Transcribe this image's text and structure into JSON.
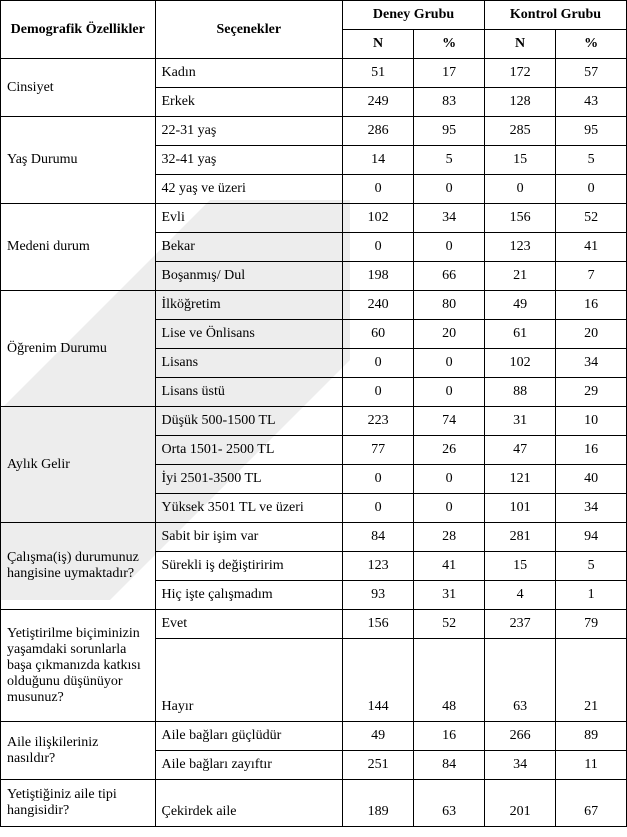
{
  "headers": {
    "demografik": "Demografik Özellikler",
    "secenekler": "Seçenekler",
    "deney": "Deney Grubu",
    "kontrol": "Kontrol Grubu",
    "n": "N",
    "pct": "%"
  },
  "sections": [
    {
      "label": "Cinsiyet",
      "rows": [
        {
          "option": "Kadın",
          "dn": "51",
          "dp": "17",
          "kn": "172",
          "kp": "57"
        },
        {
          "option": "Erkek",
          "dn": "249",
          "dp": "83",
          "kn": "128",
          "kp": "43"
        }
      ]
    },
    {
      "label": "Yaş Durumu",
      "rows": [
        {
          "option": "22-31 yaş",
          "dn": "286",
          "dp": "95",
          "kn": "285",
          "kp": "95"
        },
        {
          "option": "32-41 yaş",
          "dn": "14",
          "dp": "5",
          "kn": "15",
          "kp": "5"
        },
        {
          "option": "42 yaş ve üzeri",
          "dn": "0",
          "dp": "0",
          "kn": "0",
          "kp": "0"
        }
      ]
    },
    {
      "label": "Medeni durum",
      "rows": [
        {
          "option": "Evli",
          "dn": "102",
          "dp": "34",
          "kn": "156",
          "kp": "52"
        },
        {
          "option": "Bekar",
          "dn": "0",
          "dp": "0",
          "kn": "123",
          "kp": "41"
        },
        {
          "option": "Boşanmış/ Dul",
          "dn": "198",
          "dp": "66",
          "kn": "21",
          "kp": "7"
        }
      ]
    },
    {
      "label": "Öğrenim Durumu",
      "rows": [
        {
          "option": "İlköğretim",
          "dn": "240",
          "dp": "80",
          "kn": "49",
          "kp": "16"
        },
        {
          "option": "Lise ve Önlisans",
          "dn": "60",
          "dp": "20",
          "kn": "61",
          "kp": "20"
        },
        {
          "option": "Lisans",
          "dn": "0",
          "dp": "0",
          "kn": "102",
          "kp": "34"
        },
        {
          "option": "Lisans üstü",
          "dn": "0",
          "dp": "0",
          "kn": "88",
          "kp": "29"
        }
      ]
    },
    {
      "label": "Aylık Gelir",
      "rows": [
        {
          "option": "Düşük 500-1500 TL",
          "dn": "223",
          "dp": "74",
          "kn": "31",
          "kp": "10"
        },
        {
          "option": "Orta 1501- 2500 TL",
          "dn": "77",
          "dp": "26",
          "kn": "47",
          "kp": "16"
        },
        {
          "option": "İyi 2501-3500 TL",
          "dn": "0",
          "dp": "0",
          "kn": "121",
          "kp": "40"
        },
        {
          "option": "Yüksek 3501 TL ve üzeri",
          "dn": "0",
          "dp": "0",
          "kn": "101",
          "kp": "34"
        }
      ]
    },
    {
      "label": "Çalışma(iş) durumunuz hangisine uymaktadır?",
      "rows": [
        {
          "option": "Sabit bir işim var",
          "dn": "84",
          "dp": "28",
          "kn": "281",
          "kp": "94"
        },
        {
          "option": "Sürekli iş değiştiririm",
          "dn": "123",
          "dp": "41",
          "kn": "15",
          "kp": "5"
        },
        {
          "option": "Hiç işte çalışmadım",
          "dn": "93",
          "dp": "31",
          "kn": "4",
          "kp": "1"
        }
      ]
    },
    {
      "label": "Yetiştirilme biçiminizin yaşamdaki sorunlarla başa çıkmanızda katkısı olduğunu düşünüyor musunuz?",
      "rows": [
        {
          "option": "Evet",
          "dn": "156",
          "dp": "52",
          "kn": "237",
          "kp": "79"
        },
        {
          "option": "Hayır",
          "dn": "144",
          "dp": "48",
          "kn": "63",
          "kp": "21",
          "tall": true
        }
      ]
    },
    {
      "label": "Aile ilişkileriniz nasıldır?",
      "rows": [
        {
          "option": "Aile bağları güçlüdür",
          "dn": "49",
          "dp": "16",
          "kn": "266",
          "kp": "89"
        },
        {
          "option": "Aile bağları zayıftır",
          "dn": "251",
          "dp": "84",
          "kn": "34",
          "kp": "11"
        }
      ]
    },
    {
      "label": "Yetiştiğiniz aile tipi hangisidir?",
      "rows": [
        {
          "option": "Çekirdek aile",
          "dn": "189",
          "dp": "63",
          "kn": "201",
          "kp": "67",
          "tall2": true
        }
      ]
    }
  ]
}
